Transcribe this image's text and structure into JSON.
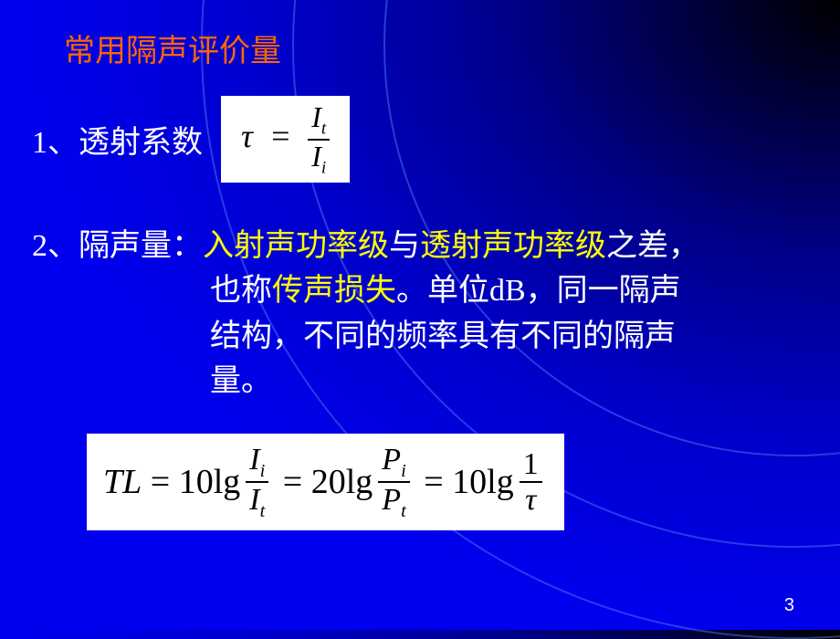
{
  "title": "常用隔声评价量",
  "item1": {
    "number": "1、",
    "label": "透射系数",
    "formula": {
      "lhs": "τ",
      "eq": "=",
      "num_sym": "I",
      "num_sub": "t",
      "den_sym": "I",
      "den_sub": "i"
    }
  },
  "item2": {
    "number": "2、",
    "label": "隔声量：",
    "yellow1": "入射声功率级",
    "mid1": "与",
    "yellow2": "透射声功率级",
    "mid2": "之差，",
    "line2a": "也称",
    "yellow3": "传声损失",
    "line2b": "。单位dB，同一隔声",
    "line3": "结构，不同的频率具有不同的隔声",
    "line4": "量。"
  },
  "formula2": {
    "TL": "TL",
    "eq": "=",
    "c10": "10",
    "lg": "lg",
    "c20": "20",
    "I": "I",
    "P": "P",
    "sub_i": "i",
    "sub_t": "t",
    "one": "1",
    "tau": "τ"
  },
  "pageNumber": "3",
  "colors": {
    "title": "#ff6600",
    "body": "#ffffff",
    "highlight": "#ffff00",
    "formula_bg": "#ffffff",
    "formula_fg": "#000000"
  }
}
